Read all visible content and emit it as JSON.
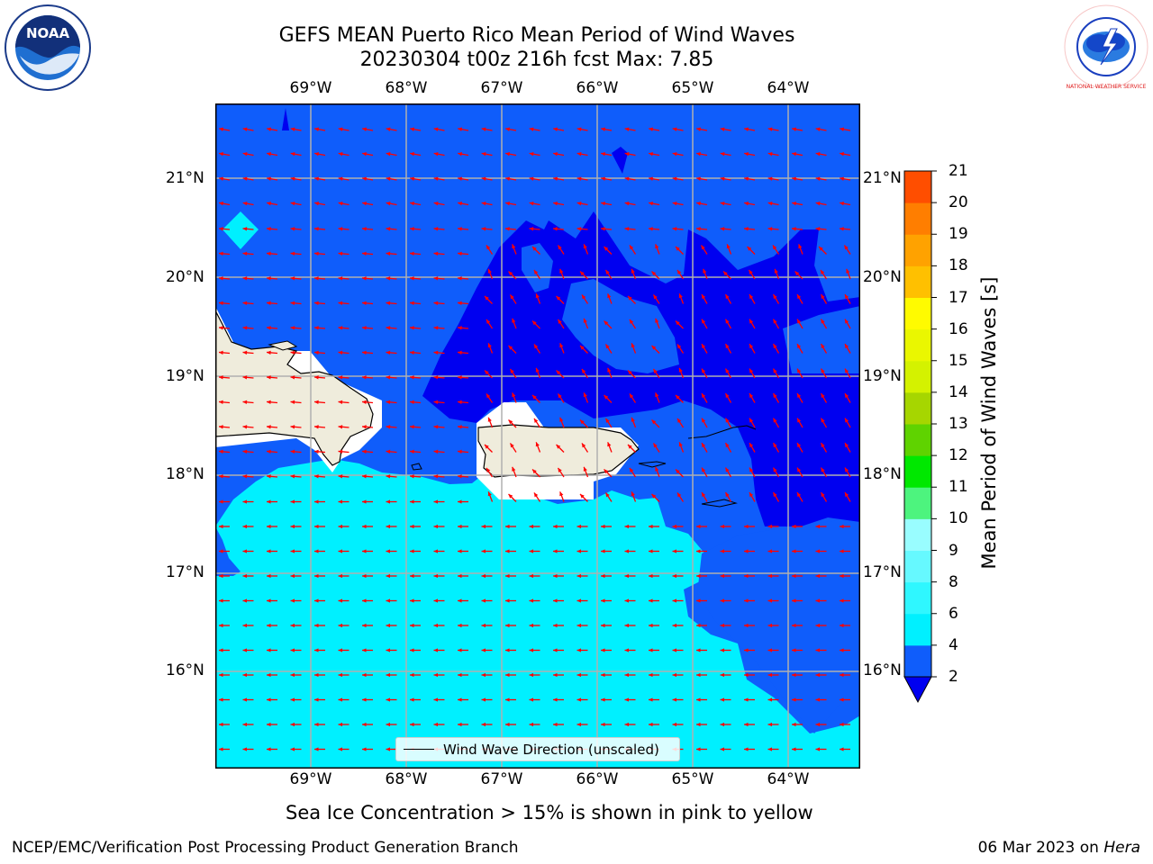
{
  "title": {
    "line1": "GEFS MEAN Puerto Rico Mean Period of Wind Waves",
    "line2": "20230304 t00z 216h fcst   Max: 7.85"
  },
  "longitude_ticks": [
    "69°W",
    "68°W",
    "67°W",
    "66°W",
    "65°W",
    "64°W"
  ],
  "latitude_ticks": [
    "21°N",
    "20°N",
    "19°N",
    "18°N",
    "17°N",
    "16°N"
  ],
  "colorbar": {
    "label": "Mean Period of Wind Waves [s]",
    "ticks": [
      "2",
      "4",
      "6",
      "8",
      "9",
      "10",
      "11",
      "12",
      "13",
      "14",
      "15",
      "16",
      "17",
      "18",
      "19",
      "20",
      "21"
    ],
    "colors": [
      "#0f5dfb",
      "#00f0ff",
      "#2ff7ff",
      "#66f9ff",
      "#99fdff",
      "#4df47e",
      "#00e800",
      "#5fd300",
      "#a6d600",
      "#d4f200",
      "#eaf700",
      "#fffb00",
      "#ffc000",
      "#ffa200",
      "#ff7e00",
      "#ff4e00",
      "#ff2600",
      "#ff0000"
    ],
    "extend_low_color": "#0000f0"
  },
  "legend": {
    "label": "Wind Wave Direction (unscaled)"
  },
  "note": "Sea Ice Concentration > 15% is shown in pink to yellow",
  "footer": {
    "left": "NCEP/EMC/Verification Post Processing Product Generation Branch",
    "date": "06 Mar 2023 on ",
    "machine": "Hera"
  },
  "logos": {
    "noaa": {
      "text": "NOAA"
    },
    "nws": {
      "text": "NATIONAL WEATHER SERVICE"
    }
  },
  "colors": {
    "band_2_4": "#0f5dfb",
    "band_4_6": "#00f0ff",
    "below_2": "#0000f0",
    "land": "#efecdc",
    "arrow": "#ff0000"
  }
}
